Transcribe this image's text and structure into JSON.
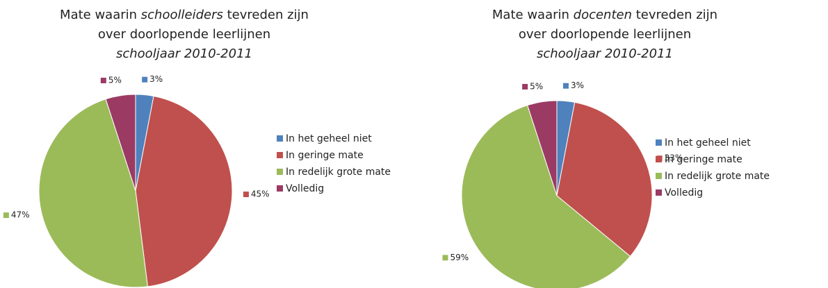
{
  "chart_data": [
    {
      "type": "pie",
      "title": [
        [
          {
            "text": "Mate waarin "
          },
          {
            "text": "schoolleiders",
            "italic": true
          },
          {
            "text": " tevreden zijn"
          }
        ],
        [
          {
            "text": "over doorlopende leerlijnen"
          }
        ],
        [
          {
            "text": "schooljaar 2010-2011",
            "italic": true
          }
        ]
      ],
      "categories": [
        "In het geheel niet",
        "In geringe mate",
        "In redelijk grote mate",
        "Volledig"
      ],
      "values": [
        3,
        45,
        47,
        5
      ],
      "value_labels": [
        "3%",
        "45%",
        "47%",
        "5%"
      ],
      "colors": [
        "#4f81bd",
        "#c0504d",
        "#9bbb59",
        "#9b3b64"
      ],
      "legend": "right"
    },
    {
      "type": "pie",
      "title": [
        [
          {
            "text": "Mate waarin "
          },
          {
            "text": "docenten",
            "italic": true
          },
          {
            "text": " tevreden zijn"
          }
        ],
        [
          {
            "text": "over doorlopende leerlijnen"
          }
        ],
        [
          {
            "text": "schooljaar 2010-2011",
            "italic": true
          }
        ]
      ],
      "categories": [
        "In het geheel niet",
        "In geringe mate",
        "In redelijk grote mate",
        "Volledig"
      ],
      "values": [
        3,
        33,
        59,
        5
      ],
      "value_labels": [
        "3%",
        "33%",
        "59%",
        "5%"
      ],
      "colors": [
        "#4f81bd",
        "#c0504d",
        "#9bbb59",
        "#9b3b64"
      ],
      "legend": "right"
    }
  ]
}
